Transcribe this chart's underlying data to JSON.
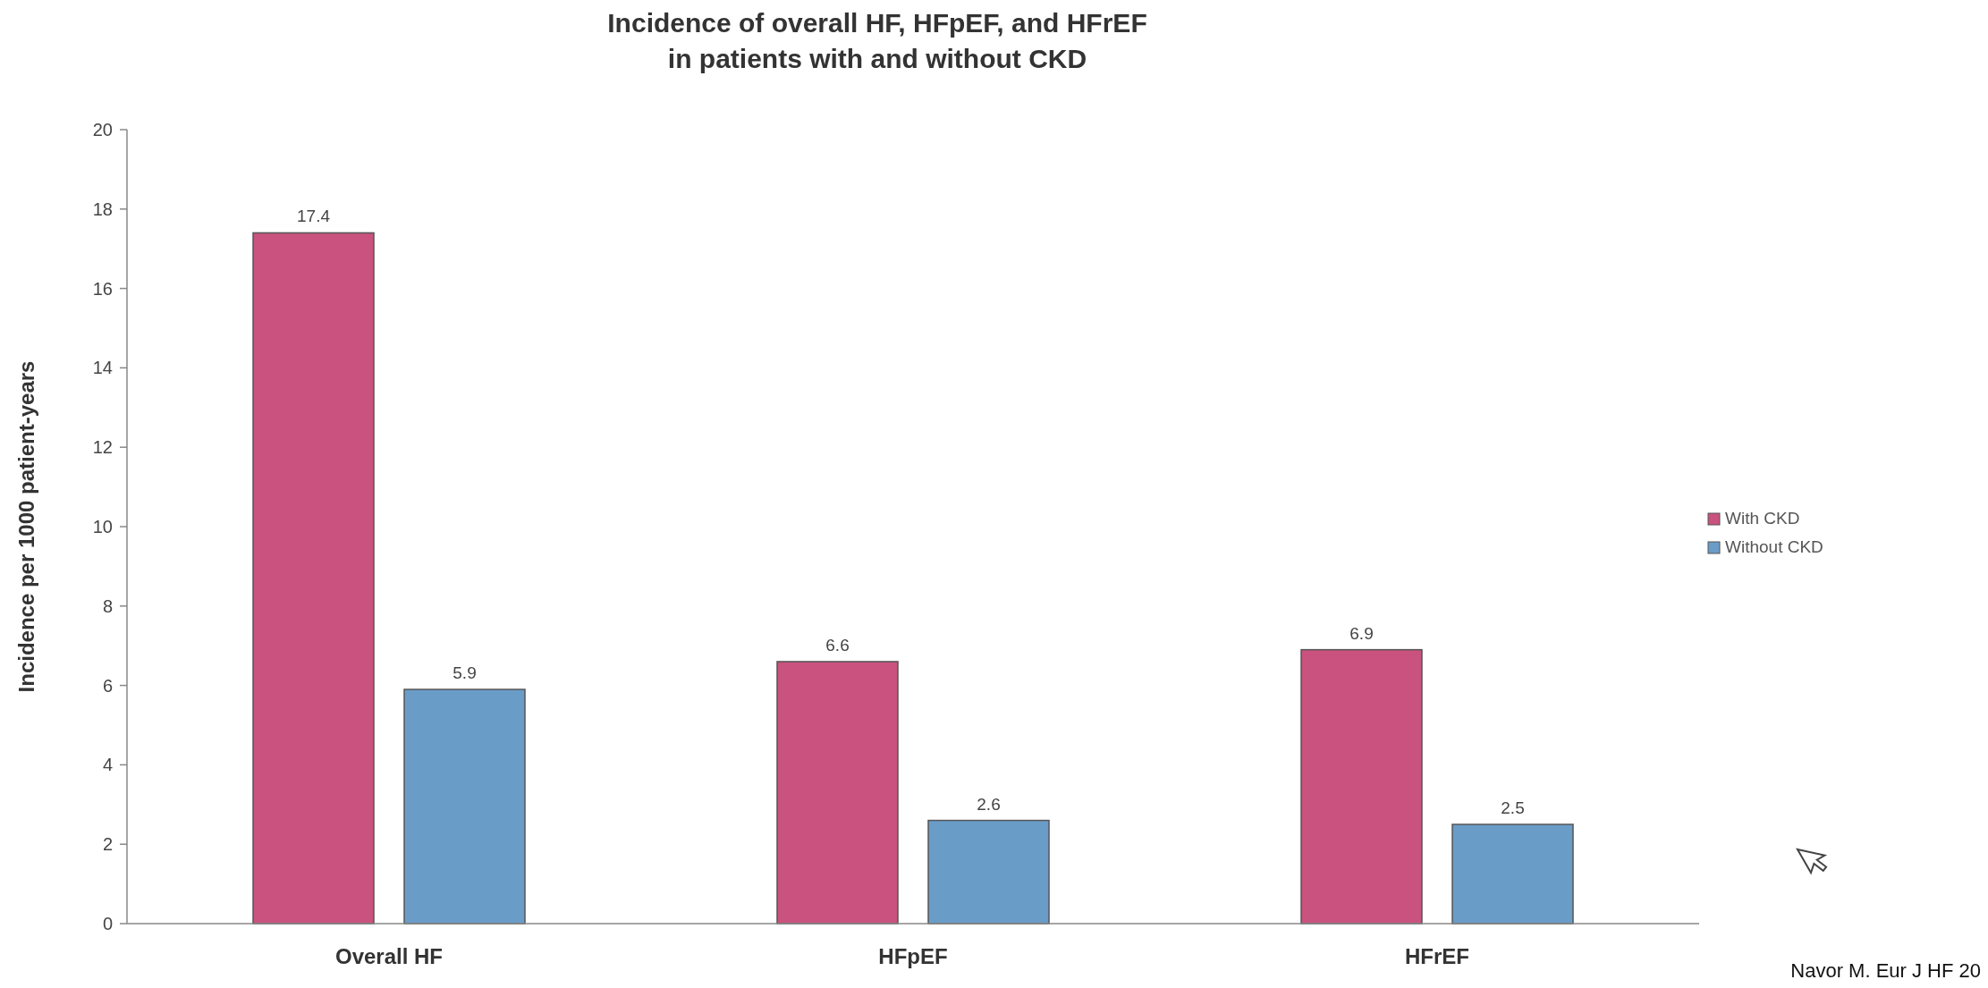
{
  "chart_data": {
    "type": "bar",
    "title": "Incidence of overall HF, HFpEF, and HFrEF\nin patients with and without CKD",
    "ylabel": "Incidence per 1000 patient-years",
    "categories": [
      "Overall HF",
      "HFpEF",
      "HFrEF"
    ],
    "series": [
      {
        "name": "With CKD",
        "color": "#c9527f",
        "values": [
          17.4,
          6.6,
          6.9
        ]
      },
      {
        "name": "Without CKD",
        "color": "#6a9cc8",
        "values": [
          5.9,
          2.6,
          2.5
        ]
      }
    ],
    "ylim": [
      0,
      20
    ],
    "yticks": [
      0,
      2,
      4,
      6,
      8,
      10,
      12,
      14,
      16,
      18,
      20
    ],
    "grid": false,
    "legend": "right",
    "data_labels": true,
    "annotations": [
      "Navor M. Eur J HF 20"
    ]
  }
}
